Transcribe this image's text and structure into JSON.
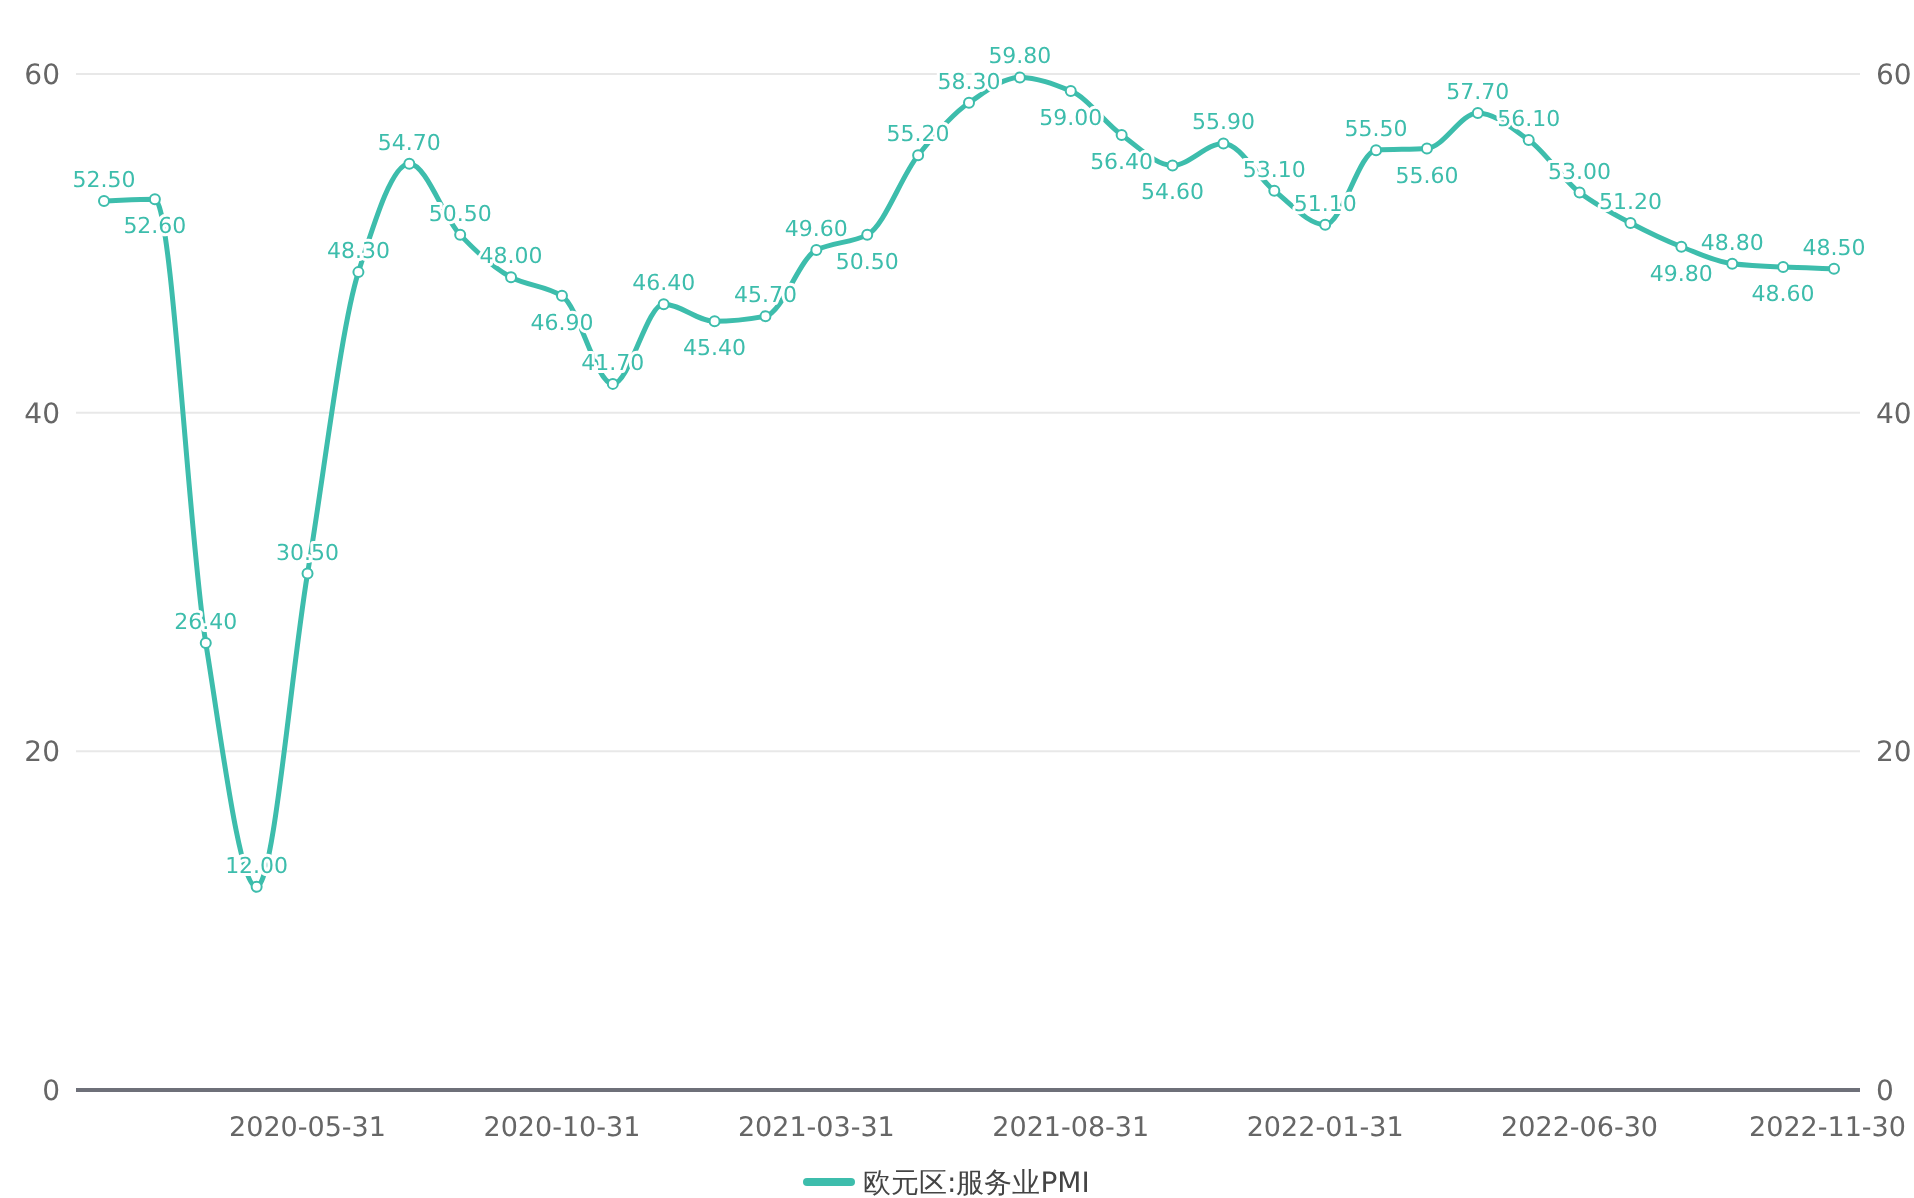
{
  "chart_data": {
    "type": "line",
    "categories": [
      null,
      null,
      null,
      null,
      "2020-05-31",
      null,
      null,
      null,
      null,
      "2020-10-31",
      null,
      null,
      null,
      null,
      "2021-03-31",
      null,
      null,
      null,
      null,
      "2021-08-31",
      null,
      null,
      null,
      null,
      "2022-01-31",
      null,
      null,
      null,
      null,
      "2022-06-30",
      null,
      null,
      null,
      null,
      "2022-11-30"
    ],
    "series": [
      {
        "name": "欧元区:服务业PMI",
        "color": "#3dbdac",
        "values": [
          52.5,
          52.6,
          26.4,
          12.0,
          30.5,
          48.3,
          54.7,
          50.5,
          48.0,
          46.9,
          41.7,
          46.4,
          45.4,
          45.7,
          49.6,
          50.5,
          55.2,
          58.3,
          59.8,
          59.0,
          56.4,
          54.6,
          55.9,
          53.1,
          51.1,
          55.5,
          55.6,
          57.7,
          56.1,
          53.0,
          51.2,
          49.8,
          48.8,
          48.6,
          48.5
        ],
        "value_labels": [
          "52.50",
          "52.60",
          "26.40",
          "12.00",
          "30.50",
          "48.30",
          "54.70",
          "50.50",
          "48.00",
          "46.90",
          "41.70",
          "46.40",
          "45.40",
          "45.70",
          "49.60",
          "50.50",
          "55.20",
          "58.30",
          "59.80",
          "59.00",
          "56.40",
          "54.60",
          "55.90",
          "53.10",
          "51.10",
          "55.50",
          "55.60",
          "57.70",
          "56.10",
          "53.00",
          "51.20",
          "49.80",
          "48.80",
          "48.60",
          "48.50"
        ]
      }
    ],
    "ylim": [
      0,
      60
    ],
    "yticks": [
      0,
      20,
      40,
      60
    ],
    "y2lim": [
      0,
      60
    ],
    "y2ticks": [
      0,
      20,
      40,
      60
    ],
    "grid": "y",
    "legend": "bottom",
    "marker": "circle",
    "line_style": "solid"
  }
}
